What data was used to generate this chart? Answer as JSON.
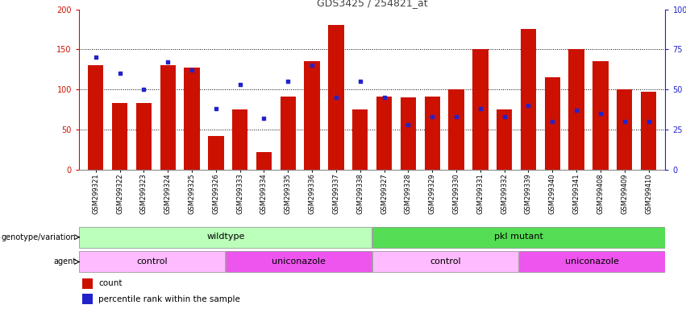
{
  "title": "GDS3425 / 254821_at",
  "samples": [
    "GSM299321",
    "GSM299322",
    "GSM299323",
    "GSM299324",
    "GSM299325",
    "GSM299326",
    "GSM299333",
    "GSM299334",
    "GSM299335",
    "GSM299336",
    "GSM299337",
    "GSM299338",
    "GSM299327",
    "GSM299328",
    "GSM299329",
    "GSM299330",
    "GSM299331",
    "GSM299332",
    "GSM299339",
    "GSM299340",
    "GSM299341",
    "GSM299408",
    "GSM299409",
    "GSM299410"
  ],
  "counts": [
    130,
    83,
    83,
    130,
    127,
    42,
    75,
    22,
    91,
    135,
    180,
    75,
    91,
    90,
    91,
    100,
    150,
    75,
    175,
    115,
    150,
    135,
    100,
    97
  ],
  "percentile_ranks": [
    70,
    60,
    50,
    67,
    62,
    38,
    53,
    32,
    55,
    65,
    45,
    55,
    45,
    28,
    33,
    33,
    38,
    33,
    40,
    30,
    37,
    35,
    30,
    30
  ],
  "bar_color": "#cc1100",
  "pct_color": "#2222cc",
  "ylim_left": [
    0,
    200
  ],
  "ylim_right": [
    0,
    100
  ],
  "yticks_left": [
    0,
    50,
    100,
    150,
    200
  ],
  "yticks_right": [
    0,
    25,
    50,
    75,
    100
  ],
  "ytick_labels_right": [
    "0",
    "25",
    "50",
    "75",
    "100%"
  ],
  "grid_values": [
    50,
    100,
    150
  ],
  "genotype_groups": [
    {
      "label": "wildtype",
      "start": 0,
      "end": 12,
      "color": "#bbffbb"
    },
    {
      "label": "pkl mutant",
      "start": 12,
      "end": 24,
      "color": "#55dd55"
    }
  ],
  "agent_groups": [
    {
      "label": "control",
      "start": 0,
      "end": 6,
      "color": "#ffbbff"
    },
    {
      "label": "uniconazole",
      "start": 6,
      "end": 12,
      "color": "#ee55ee"
    },
    {
      "label": "control",
      "start": 12,
      "end": 18,
      "color": "#ffbbff"
    },
    {
      "label": "uniconazole",
      "start": 18,
      "end": 24,
      "color": "#ee55ee"
    }
  ],
  "legend_items": [
    {
      "label": "count",
      "color": "#cc1100"
    },
    {
      "label": "percentile rank within the sample",
      "color": "#2222cc"
    }
  ],
  "bg_color": "#ffffff",
  "plot_bg_color": "#ffffff",
  "title_color": "#444444",
  "left_axis_color": "#cc1100",
  "right_axis_color": "#2222cc"
}
